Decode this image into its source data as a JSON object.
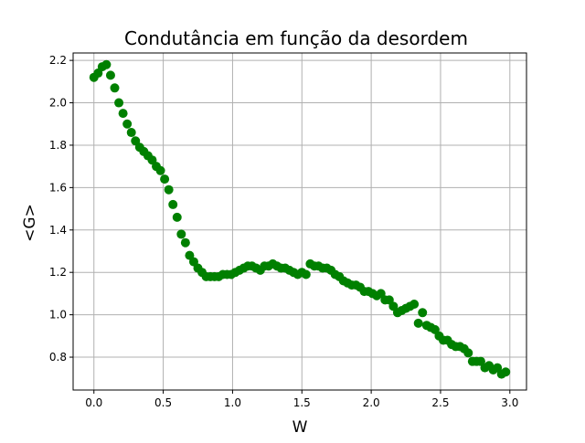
{
  "chart_data": {
    "type": "scatter",
    "title": "Condutância em função da desordem",
    "xlabel": "W",
    "ylabel": "<G>",
    "xlim": [
      -0.15,
      3.12
    ],
    "ylim": [
      0.645,
      2.235
    ],
    "xticks": [
      0.0,
      0.5,
      1.0,
      1.5,
      2.0,
      2.5,
      3.0
    ],
    "xtick_labels": [
      "0.0",
      "0.5",
      "1.0",
      "1.5",
      "2.0",
      "2.5",
      "3.0"
    ],
    "yticks": [
      0.8,
      1.0,
      1.2,
      1.4,
      1.6,
      1.8,
      2.0,
      2.2
    ],
    "ytick_labels": [
      "0.8",
      "1.0",
      "1.2",
      "1.4",
      "1.6",
      "1.8",
      "2.0",
      "2.2"
    ],
    "grid": true,
    "marker_color": "#008000",
    "series": [
      {
        "x": [
          0.0,
          0.03,
          0.06,
          0.09,
          0.12,
          0.15,
          0.18,
          0.21,
          0.24,
          0.27,
          0.3,
          0.33,
          0.36,
          0.39,
          0.42,
          0.45,
          0.48,
          0.51,
          0.54,
          0.57,
          0.6,
          0.63,
          0.66,
          0.69,
          0.72,
          0.75,
          0.78,
          0.81,
          0.84,
          0.87,
          0.9,
          0.93,
          0.96,
          0.99,
          1.02,
          1.05,
          1.08,
          1.11,
          1.14,
          1.17,
          1.2,
          1.23,
          1.26,
          1.29,
          1.32,
          1.35,
          1.38,
          1.41,
          1.44,
          1.47,
          1.5,
          1.53,
          1.56,
          1.59,
          1.62,
          1.65,
          1.68,
          1.71,
          1.74,
          1.77,
          1.8,
          1.83,
          1.86,
          1.89,
          1.92,
          1.95,
          1.98,
          2.01,
          2.04,
          2.07,
          2.1,
          2.13,
          2.16,
          2.19,
          2.22,
          2.25,
          2.28,
          2.31,
          2.34,
          2.37,
          2.4,
          2.43,
          2.46,
          2.49,
          2.52,
          2.55,
          2.58,
          2.61,
          2.64,
          2.67,
          2.7,
          2.73,
          2.76,
          2.79,
          2.82,
          2.85,
          2.88,
          2.91,
          2.94,
          2.97
        ],
        "y": [
          2.12,
          2.14,
          2.17,
          2.18,
          2.13,
          2.07,
          2.0,
          1.95,
          1.9,
          1.86,
          1.82,
          1.79,
          1.77,
          1.75,
          1.73,
          1.7,
          1.68,
          1.64,
          1.59,
          1.52,
          1.46,
          1.38,
          1.34,
          1.28,
          1.25,
          1.22,
          1.2,
          1.18,
          1.18,
          1.18,
          1.18,
          1.19,
          1.19,
          1.19,
          1.2,
          1.21,
          1.22,
          1.23,
          1.23,
          1.22,
          1.21,
          1.23,
          1.23,
          1.24,
          1.23,
          1.22,
          1.22,
          1.21,
          1.2,
          1.19,
          1.2,
          1.19,
          1.24,
          1.23,
          1.23,
          1.22,
          1.22,
          1.21,
          1.19,
          1.18,
          1.16,
          1.15,
          1.14,
          1.14,
          1.13,
          1.11,
          1.11,
          1.1,
          1.09,
          1.1,
          1.07,
          1.07,
          1.04,
          1.01,
          1.02,
          1.03,
          1.04,
          1.05,
          0.96,
          1.01,
          0.95,
          0.94,
          0.93,
          0.9,
          0.88,
          0.88,
          0.86,
          0.85,
          0.85,
          0.84,
          0.82,
          0.78,
          0.78,
          0.78,
          0.75,
          0.76,
          0.74,
          0.75,
          0.72,
          0.73
        ]
      }
    ]
  }
}
